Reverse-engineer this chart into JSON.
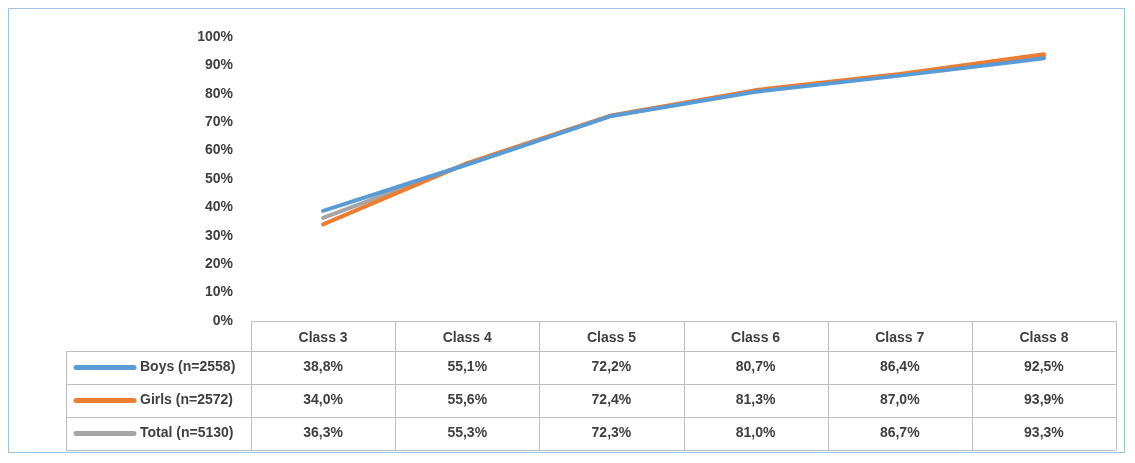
{
  "chart_data": {
    "type": "line",
    "categories": [
      "Class 3",
      "Class 4",
      "Class 5",
      "Class 6",
      "Class 7",
      "Class 8"
    ],
    "series": [
      {
        "name": "Boys (n=2558)",
        "color": "#5b9bd5",
        "values": [
          38.8,
          55.1,
          72.2,
          80.7,
          86.4,
          92.5
        ],
        "value_labels": [
          "38,8%",
          "55,1%",
          "72,2%",
          "80,7%",
          "86,4%",
          "92,5%"
        ]
      },
      {
        "name": "Girls (n=2572)",
        "color": "#ed7d31",
        "values": [
          34.0,
          55.6,
          72.4,
          81.3,
          87.0,
          93.9
        ],
        "value_labels": [
          "34,0%",
          "55,6%",
          "72,4%",
          "81,3%",
          "87,0%",
          "93,9%"
        ]
      },
      {
        "name": "Total (n=5130)",
        "color": "#a5a5a5",
        "values": [
          36.3,
          55.3,
          72.3,
          81.0,
          86.7,
          93.3
        ],
        "value_labels": [
          "36,3%",
          "55,3%",
          "72,3%",
          "81,0%",
          "86,7%",
          "93,3%"
        ]
      }
    ],
    "ylim": [
      0,
      100
    ],
    "yticks": [
      {
        "value": 0,
        "label": "0%"
      },
      {
        "value": 10,
        "label": "10%"
      },
      {
        "value": 20,
        "label": "20%"
      },
      {
        "value": 30,
        "label": "30%"
      },
      {
        "value": 40,
        "label": "40%"
      },
      {
        "value": 50,
        "label": "50%"
      },
      {
        "value": 60,
        "label": "60%"
      },
      {
        "value": 70,
        "label": "70%"
      },
      {
        "value": 80,
        "label": "80%"
      },
      {
        "value": 90,
        "label": "90%"
      },
      {
        "value": 100,
        "label": "100%"
      }
    ],
    "grid": false,
    "legend": "bottom left",
    "marker": "none",
    "line_style": "solid"
  }
}
